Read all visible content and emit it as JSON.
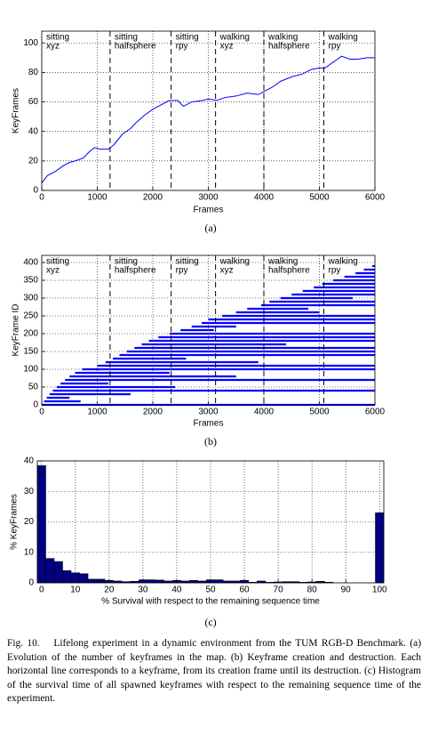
{
  "chart_data": [
    {
      "type": "line",
      "label": "(a)",
      "xlabel": "Frames",
      "ylabel": "KeyFrames",
      "xlim": [
        0,
        6000
      ],
      "ylim": [
        0,
        108
      ],
      "xticks": [
        0,
        1000,
        2000,
        3000,
        4000,
        5000,
        6000
      ],
      "yticks": [
        0,
        20,
        40,
        60,
        80,
        100
      ],
      "grid": true,
      "color": "#0000ff",
      "dividers": [
        1230,
        2330,
        3130,
        4000,
        5080
      ],
      "regions": [
        [
          "sitting",
          "xyz"
        ],
        [
          "sitting",
          "halfsphere"
        ],
        [
          "sitting",
          "rpy"
        ],
        [
          "walking",
          "xyz"
        ],
        [
          "walking",
          "halfsphere"
        ],
        [
          "walking",
          "rpy"
        ]
      ],
      "x": [
        0,
        100,
        250,
        400,
        500,
        600,
        750,
        850,
        950,
        1050,
        1200,
        1300,
        1450,
        1600,
        1700,
        1850,
        2000,
        2150,
        2300,
        2450,
        2550,
        2700,
        2900,
        3000,
        3150,
        3300,
        3500,
        3700,
        3900,
        4000,
        4150,
        4300,
        4500,
        4700,
        4850,
        5000,
        5100,
        5250,
        5400,
        5550,
        5700,
        5850,
        6000
      ],
      "values": [
        5,
        10,
        13,
        17,
        19,
        20,
        22,
        26,
        29,
        28,
        28,
        31,
        38,
        42,
        46,
        51,
        55,
        58,
        61,
        61,
        57,
        60,
        61,
        62,
        61,
        63,
        64,
        66,
        65,
        67,
        70,
        74,
        77,
        79,
        82,
        83,
        83,
        87,
        91,
        89,
        89,
        90,
        90
      ]
    },
    {
      "type": "segments",
      "label": "(b)",
      "xlabel": "Frames",
      "ylabel": "KeyFrame ID",
      "xlim": [
        0,
        6000
      ],
      "ylim": [
        0,
        420
      ],
      "xticks": [
        0,
        1000,
        2000,
        3000,
        4000,
        5000,
        6000
      ],
      "yticks": [
        0,
        50,
        100,
        150,
        200,
        250,
        300,
        350,
        400
      ],
      "grid": true,
      "color": "#0000ff",
      "dividers": [
        1230,
        2330,
        3130,
        4000,
        5080
      ],
      "regions": [
        [
          "sitting",
          "xyz"
        ],
        [
          "sitting",
          "halfsphere"
        ],
        [
          "sitting",
          "rpy"
        ],
        [
          "walking",
          "xyz"
        ],
        [
          "walking",
          "halfsphere"
        ],
        [
          "walking",
          "rpy"
        ]
      ],
      "ids": [
        0,
        10,
        20,
        30,
        40,
        50,
        60,
        70,
        80,
        90,
        100,
        110,
        120,
        130,
        140,
        150,
        160,
        170,
        180,
        190,
        200,
        210,
        220,
        230,
        240,
        250,
        260,
        270,
        280,
        290,
        300,
        310,
        320,
        330,
        340,
        350,
        360,
        370,
        380,
        390
      ],
      "start": [
        0,
        40,
        90,
        140,
        200,
        270,
        340,
        420,
        500,
        600,
        730,
        1000,
        1150,
        1280,
        1400,
        1530,
        1670,
        1800,
        1930,
        2100,
        2300,
        2500,
        2700,
        2880,
        3000,
        3250,
        3500,
        3700,
        3950,
        4100,
        4300,
        4500,
        4700,
        4900,
        5050,
        5250,
        5450,
        5650,
        5800,
        5950
      ],
      "end": [
        6000,
        700,
        500,
        1600,
        6000,
        2400,
        1200,
        6000,
        3500,
        2300,
        6000,
        6000,
        3900,
        2600,
        6000,
        6000,
        6000,
        4400,
        6000,
        6000,
        6000,
        3100,
        3500,
        6000,
        6000,
        6000,
        5000,
        4800,
        6000,
        6000,
        5600,
        6000,
        6000,
        6000,
        6000,
        6000,
        6000,
        6000,
        6000,
        6000
      ]
    },
    {
      "type": "histogram",
      "label": "(c)",
      "xlabel": "% Survival with respect to the remaining sequence time",
      "ylabel": "% KeyFrames",
      "xlim": [
        -1.25,
        101.25
      ],
      "ylim": [
        0,
        40
      ],
      "xticks": [
        0,
        10,
        20,
        30,
        40,
        50,
        60,
        70,
        80,
        90,
        100
      ],
      "yticks": [
        0,
        10,
        20,
        30,
        40
      ],
      "grid": true,
      "color": "#000080",
      "bins": [
        -1.25,
        1.25,
        3.75,
        6.25,
        8.75,
        11.25,
        13.75,
        16.25,
        18.75,
        21.25,
        23.75,
        26.25,
        28.75,
        31.25,
        33.75,
        36.25,
        38.75,
        41.25,
        43.75,
        46.25,
        48.75,
        51.25,
        53.75,
        56.25,
        58.75,
        61.25,
        63.75,
        66.25,
        68.75,
        71.25,
        73.75,
        76.25,
        78.75,
        81.25,
        83.75,
        86.25,
        88.75,
        91.25,
        93.75,
        96.25,
        98.75,
        101.25
      ],
      "values": [
        38.5,
        8,
        7,
        4,
        3.3,
        3,
        1.2,
        1.2,
        0.8,
        0.6,
        0.4,
        0.5,
        1.0,
        1.0,
        0.9,
        0.6,
        0.8,
        0.6,
        0.8,
        0.6,
        1.0,
        1.0,
        0.6,
        0.6,
        0.8,
        0.2,
        0.6,
        0.2,
        0.3,
        0.4,
        0.4,
        0.2,
        0.3,
        0.5,
        0.2,
        0,
        0,
        0,
        0,
        0,
        23
      ]
    }
  ],
  "caption": "Fig. 10.  Lifelong experiment in a dynamic environment from the TUM RGB-D Benchmark. (a) Evolution of the number of keyframes in the map. (b) Keyframe creation and destruction. Each horizontal line corresponds to a keyframe, from its creation frame until its destruction. (c) Histogram of the survival time of all spawned keyframes with respect to the remaining sequence time of the experiment."
}
